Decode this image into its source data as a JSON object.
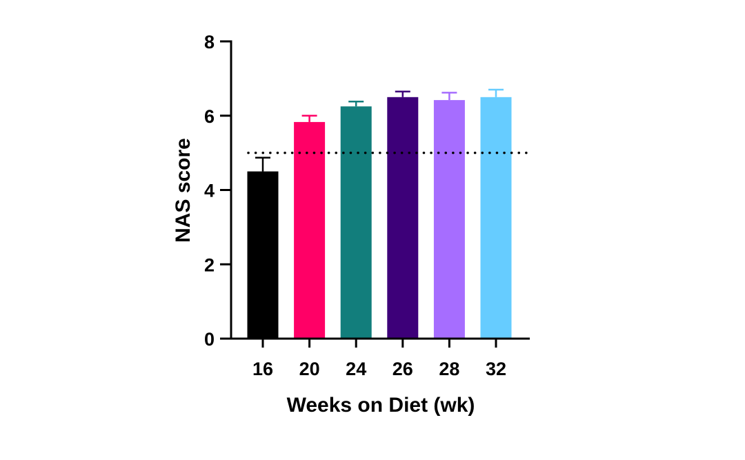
{
  "chart_data": {
    "type": "bar",
    "title": "",
    "xlabel": "Weeks on Diet (wk)",
    "ylabel": "NAS score",
    "categories": [
      "16",
      "20",
      "24",
      "26",
      "28",
      "32"
    ],
    "values": [
      4.5,
      5.83,
      6.25,
      6.5,
      6.42,
      6.5
    ],
    "errors": [
      0.37,
      0.17,
      0.13,
      0.15,
      0.2,
      0.2
    ],
    "colors": [
      "#000000",
      "#ff0066",
      "#127e7c",
      "#3d0079",
      "#a66dff",
      "#66ccff"
    ],
    "ylim": [
      0,
      8
    ],
    "yticks": [
      "0",
      "2",
      "4",
      "6",
      "8"
    ],
    "threshold": 5,
    "threshold_style": "dotted",
    "grid": false,
    "legend": "none"
  }
}
